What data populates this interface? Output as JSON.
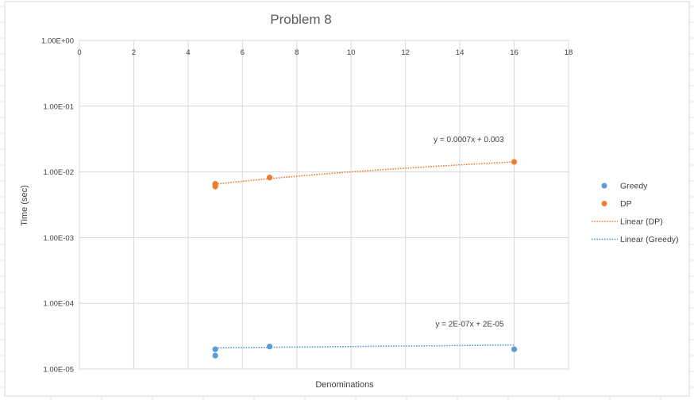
{
  "chart_data": {
    "type": "scatter",
    "title": "Problem 8",
    "xlabel": "Denominations",
    "ylabel": "Time (sec)",
    "xlim": [
      0,
      18
    ],
    "x_ticks": [
      0,
      2,
      4,
      6,
      8,
      10,
      12,
      14,
      16,
      18
    ],
    "x_tick_labels": [
      "0",
      "2",
      "4",
      "6",
      "8",
      "10",
      "12",
      "14",
      "16",
      "18"
    ],
    "yscale": "log",
    "ylim": [
      1e-05,
      1
    ],
    "y_ticks": [
      1,
      0.1,
      0.01,
      0.001,
      0.0001,
      1e-05
    ],
    "y_tick_labels": [
      "1.00E+00",
      "1.00E-01",
      "1.00E-02",
      "1.00E-03",
      "1.00E-04",
      "1.00E-05"
    ],
    "grid": true,
    "legend_position": "right",
    "series": [
      {
        "name": "Greedy",
        "color": "#5B9BD5",
        "points": [
          {
            "x": 5,
            "y": 2e-05
          },
          {
            "x": 5,
            "y": 1.6e-05
          },
          {
            "x": 7,
            "y": 2.2e-05
          },
          {
            "x": 16,
            "y": 2e-05
          }
        ]
      },
      {
        "name": "DP",
        "color": "#ED7D31",
        "points": [
          {
            "x": 5,
            "y": 0.0066
          },
          {
            "x": 5,
            "y": 0.0063
          },
          {
            "x": 5,
            "y": 0.006
          },
          {
            "x": 7,
            "y": 0.0082
          },
          {
            "x": 16,
            "y": 0.0142
          }
        ]
      }
    ],
    "trendlines": [
      {
        "name": "Linear (DP)",
        "series": "DP",
        "color": "#ED7D31",
        "slope": 0.0007,
        "intercept": 0.003,
        "x_range": [
          5,
          16
        ],
        "equation": "y = 0.0007x + 0.003"
      },
      {
        "name": "Linear (Greedy)",
        "series": "Greedy",
        "color": "#5B9BD5",
        "slope": 2e-07,
        "intercept": 2e-05,
        "x_range": [
          5,
          16
        ],
        "equation": "y = 2E-07x + 2E-05"
      }
    ],
    "legend": [
      {
        "label": "Greedy",
        "kind": "marker",
        "color": "#5B9BD5"
      },
      {
        "label": "DP",
        "kind": "marker",
        "color": "#ED7D31"
      },
      {
        "label": "Linear (DP)",
        "kind": "line",
        "color": "#ED7D31"
      },
      {
        "label": "Linear (Greedy)",
        "kind": "line",
        "color": "#5B9BD5"
      }
    ]
  }
}
